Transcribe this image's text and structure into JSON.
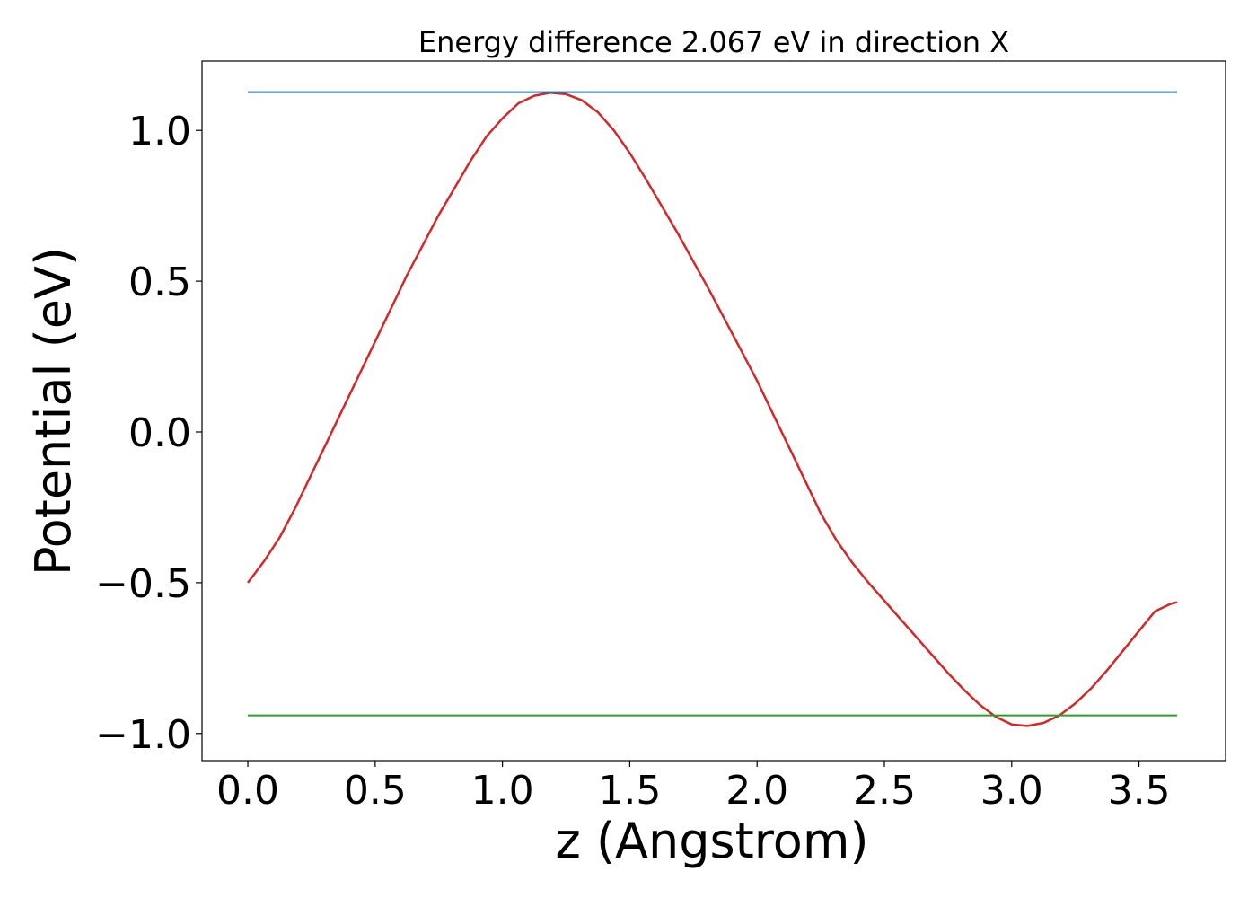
{
  "chart_data": {
    "type": "line",
    "title": "Energy difference 2.067 eV in direction X",
    "xlabel": "z (Angstrom)",
    "ylabel": "Potential (eV)",
    "xlim": [
      -0.18,
      3.84
    ],
    "ylim": [
      -1.09,
      1.23
    ],
    "grid": false,
    "x_ticks": [
      0.0,
      0.5,
      1.0,
      1.5,
      2.0,
      2.5,
      3.0,
      3.5
    ],
    "x_tick_labels": [
      "0.0",
      "0.5",
      "1.0",
      "1.5",
      "2.0",
      "2.5",
      "3.0",
      "3.5"
    ],
    "y_ticks": [
      1.0,
      0.5,
      0.0,
      -0.5,
      -1.0
    ],
    "y_tick_labels": [
      "1.0",
      "0.5",
      "0.0",
      "−0.5",
      "−1.0"
    ],
    "series": [
      {
        "color": "#d62728",
        "x": [
          0.0,
          0.0625,
          0.125,
          0.1875,
          0.25,
          0.3125,
          0.375,
          0.4375,
          0.5,
          0.5625,
          0.625,
          0.6875,
          0.75,
          0.8125,
          0.875,
          0.9375,
          1.0,
          1.0625,
          1.125,
          1.1875,
          1.25,
          1.3125,
          1.375,
          1.4375,
          1.5,
          1.5625,
          1.625,
          1.6875,
          1.75,
          1.8125,
          1.875,
          1.9375,
          2.0,
          2.0625,
          2.125,
          2.1875,
          2.25,
          2.3125,
          2.375,
          2.4375,
          2.5,
          2.5625,
          2.625,
          2.6875,
          2.75,
          2.8125,
          2.875,
          2.9375,
          3.0,
          3.0625,
          3.125,
          3.1875,
          3.25,
          3.3125,
          3.375,
          3.4375,
          3.5,
          3.5625,
          3.625,
          3.65
        ],
        "values": [
          -0.5,
          -0.43,
          -0.35,
          -0.25,
          -0.14,
          -0.03,
          0.08,
          0.19,
          0.3,
          0.41,
          0.52,
          0.62,
          0.72,
          0.81,
          0.9,
          0.98,
          1.04,
          1.09,
          1.115,
          1.125,
          1.12,
          1.1,
          1.06,
          1.0,
          0.925,
          0.84,
          0.75,
          0.66,
          0.565,
          0.47,
          0.37,
          0.27,
          0.17,
          0.06,
          -0.05,
          -0.16,
          -0.27,
          -0.36,
          -0.435,
          -0.5,
          -0.56,
          -0.62,
          -0.68,
          -0.74,
          -0.8,
          -0.855,
          -0.905,
          -0.945,
          -0.97,
          -0.975,
          -0.965,
          -0.94,
          -0.9,
          -0.85,
          -0.79,
          -0.725,
          -0.66,
          -0.595,
          -0.57,
          -0.565
        ]
      },
      {
        "color": "#1f77b4",
        "x": [
          0.0,
          3.65
        ],
        "values": [
          1.127,
          1.127
        ]
      },
      {
        "color": "#2ca02c",
        "x": [
          0.0,
          3.65
        ],
        "values": [
          -0.94,
          -0.94
        ]
      }
    ]
  }
}
